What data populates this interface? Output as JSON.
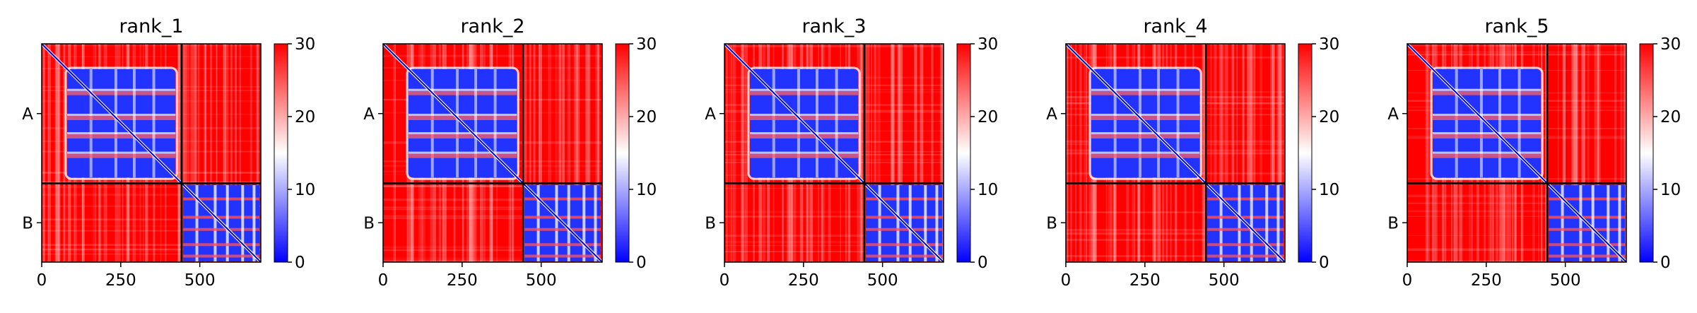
{
  "chart_data": [
    {
      "type": "heatmap",
      "title": "rank_1",
      "x_ticks": [
        "0",
        "250",
        "500"
      ],
      "x_tick_values": [
        0,
        250,
        500
      ],
      "y_tick_labels": [
        "A",
        "B"
      ],
      "chains": [
        {
          "name": "A",
          "start": 0,
          "end": 443
        },
        {
          "name": "B",
          "start": 443,
          "end": 693
        }
      ],
      "colorbar": {
        "ticks": [
          "0",
          "10",
          "20",
          "30"
        ],
        "min": 0,
        "max": 30,
        "colormap": [
          "#0000ff",
          "#ffffff",
          "#ff0000"
        ]
      }
    },
    {
      "type": "heatmap",
      "title": "rank_2",
      "x_ticks": [
        "0",
        "250",
        "500"
      ],
      "x_tick_values": [
        0,
        250,
        500
      ],
      "y_tick_labels": [
        "A",
        "B"
      ],
      "chains": [
        {
          "name": "A",
          "start": 0,
          "end": 443
        },
        {
          "name": "B",
          "start": 443,
          "end": 693
        }
      ],
      "colorbar": {
        "ticks": [
          "0",
          "10",
          "20",
          "30"
        ],
        "min": 0,
        "max": 30,
        "colormap": [
          "#0000ff",
          "#ffffff",
          "#ff0000"
        ]
      }
    },
    {
      "type": "heatmap",
      "title": "rank_3",
      "x_ticks": [
        "0",
        "250",
        "500"
      ],
      "x_tick_values": [
        0,
        250,
        500
      ],
      "y_tick_labels": [
        "A",
        "B"
      ],
      "chains": [
        {
          "name": "A",
          "start": 0,
          "end": 443
        },
        {
          "name": "B",
          "start": 443,
          "end": 693
        }
      ],
      "colorbar": {
        "ticks": [
          "0",
          "10",
          "20",
          "30"
        ],
        "min": 0,
        "max": 30,
        "colormap": [
          "#0000ff",
          "#ffffff",
          "#ff0000"
        ]
      }
    },
    {
      "type": "heatmap",
      "title": "rank_4",
      "x_ticks": [
        "0",
        "250",
        "500"
      ],
      "x_tick_values": [
        0,
        250,
        500
      ],
      "y_tick_labels": [
        "A",
        "B"
      ],
      "chains": [
        {
          "name": "A",
          "start": 0,
          "end": 443
        },
        {
          "name": "B",
          "start": 443,
          "end": 693
        }
      ],
      "colorbar": {
        "ticks": [
          "0",
          "10",
          "20",
          "30"
        ],
        "min": 0,
        "max": 30,
        "colormap": [
          "#0000ff",
          "#ffffff",
          "#ff0000"
        ]
      }
    },
    {
      "type": "heatmap",
      "title": "rank_5",
      "x_ticks": [
        "0",
        "250",
        "500"
      ],
      "x_tick_values": [
        0,
        250,
        500
      ],
      "y_tick_labels": [
        "A",
        "B"
      ],
      "chains": [
        {
          "name": "A",
          "start": 0,
          "end": 443
        },
        {
          "name": "B",
          "start": 443,
          "end": 693
        }
      ],
      "colorbar": {
        "ticks": [
          "0",
          "10",
          "20",
          "30"
        ],
        "min": 0,
        "max": 30,
        "colormap": [
          "#0000ff",
          "#ffffff",
          "#ff0000"
        ]
      }
    }
  ]
}
